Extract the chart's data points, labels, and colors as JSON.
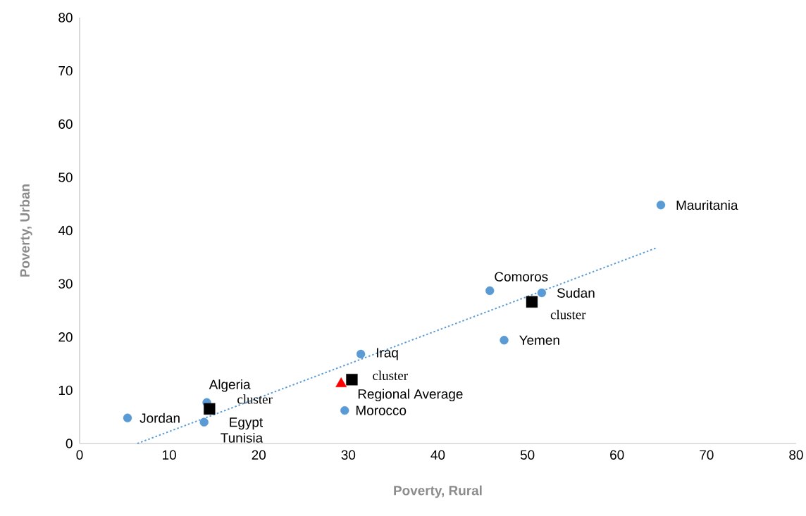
{
  "chart_data": {
    "type": "scatter",
    "xlabel": "Poverty, Rural",
    "ylabel": "Poverty, Urban",
    "xlim": [
      0,
      80
    ],
    "ylim": [
      0,
      80
    ],
    "xticks": [
      0,
      10,
      20,
      30,
      40,
      50,
      60,
      70,
      80
    ],
    "yticks": [
      0,
      10,
      20,
      30,
      40,
      50,
      60,
      70,
      80
    ],
    "grid": false,
    "legend": false,
    "series": [
      {
        "marker": "circle",
        "color": "#5b9bd5",
        "x": [
          5.35,
          14.2,
          13.9,
          31.4,
          29.6,
          45.8,
          51.6,
          47.4,
          64.9
        ],
        "values": [
          4.8,
          7.7,
          4.0,
          16.8,
          6.2,
          28.7,
          28.3,
          19.4,
          44.8
        ]
      },
      {
        "marker": "square",
        "color": "#000000",
        "x": [
          14.5,
          30.4,
          50.5
        ],
        "values": [
          6.5,
          12.0,
          26.6
        ]
      },
      {
        "marker": "triangle",
        "color": "#ff0000",
        "x": [
          29.2
        ],
        "values": [
          11.2
        ]
      },
      {
        "type": "line",
        "marker": "none",
        "line_style": "dotted",
        "color": "#5b9bd5",
        "x": [
          6.45,
          64.5
        ],
        "values": [
          0,
          36.8
        ]
      }
    ],
    "annotations": [
      {
        "text": "Jordan",
        "x": 5.35,
        "y": 4.8
      },
      {
        "text": "Algeria",
        "x": 14.2,
        "y": 7.7
      },
      {
        "text": "Egypt",
        "x": 13.9,
        "y": 4.0
      },
      {
        "text": "Tunisia",
        "x": 13.9,
        "y": 4.0
      },
      {
        "text": "Iraq",
        "x": 31.4,
        "y": 16.8
      },
      {
        "text": "Morocco",
        "x": 29.6,
        "y": 6.2
      },
      {
        "text": "Comoros",
        "x": 45.8,
        "y": 28.7
      },
      {
        "text": "Sudan",
        "x": 51.6,
        "y": 28.3
      },
      {
        "text": "Yemen",
        "x": 47.4,
        "y": 19.4
      },
      {
        "text": "Mauritania",
        "x": 64.9,
        "y": 44.8
      },
      {
        "text": "Regional Average",
        "x": 29.2,
        "y": 11.2
      },
      {
        "text": "cluster",
        "x": 14.5,
        "y": 6.5
      },
      {
        "text": "cluster",
        "x": 30.4,
        "y": 12.0
      },
      {
        "text": "cluster",
        "x": 50.5,
        "y": 26.6
      }
    ]
  }
}
